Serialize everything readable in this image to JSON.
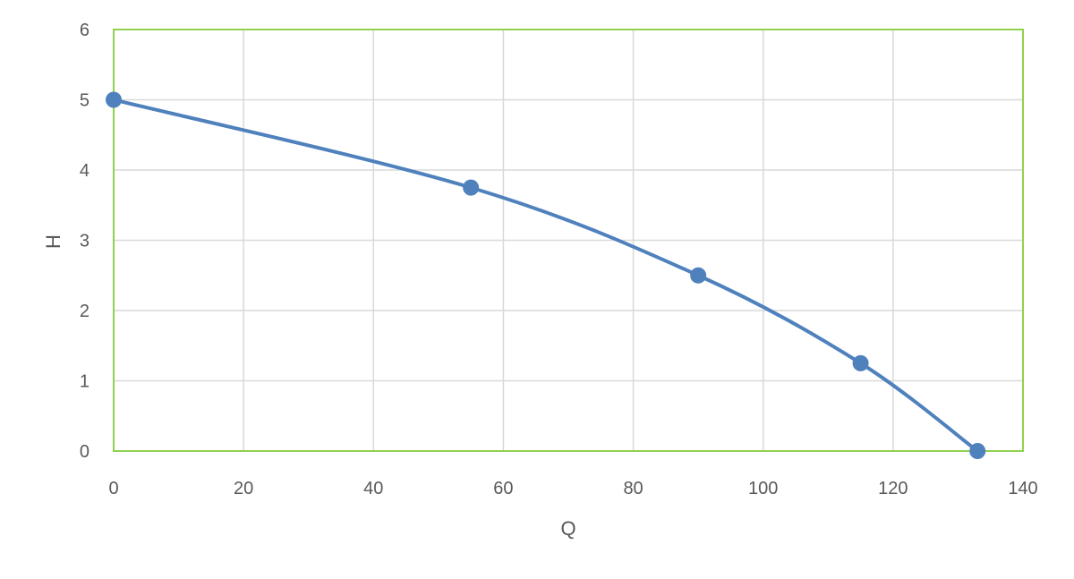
{
  "chart_data": {
    "type": "scatter",
    "xlabel": "Q",
    "ylabel": "H",
    "xlim": [
      0,
      140
    ],
    "ylim": [
      0,
      6
    ],
    "x_ticks": [
      0,
      20,
      40,
      60,
      80,
      100,
      120,
      140
    ],
    "y_ticks": [
      0,
      1,
      2,
      3,
      4,
      5,
      6
    ],
    "x_tick_labels": [
      "0",
      "20",
      "40",
      "60",
      "80",
      "100",
      "120",
      "140"
    ],
    "y_tick_labels": [
      "0",
      "1",
      "2",
      "3",
      "4",
      "5",
      "6"
    ],
    "grid": true,
    "smooth_line": true,
    "series": [
      {
        "x": [
          0,
          55,
          90,
          115,
          133
        ],
        "y": [
          5,
          3.75,
          2.5,
          1.25,
          0
        ],
        "color": "#4f81bd"
      }
    ],
    "gridline_color": "#d9d9d9",
    "plot_border_color": "#92d050"
  }
}
